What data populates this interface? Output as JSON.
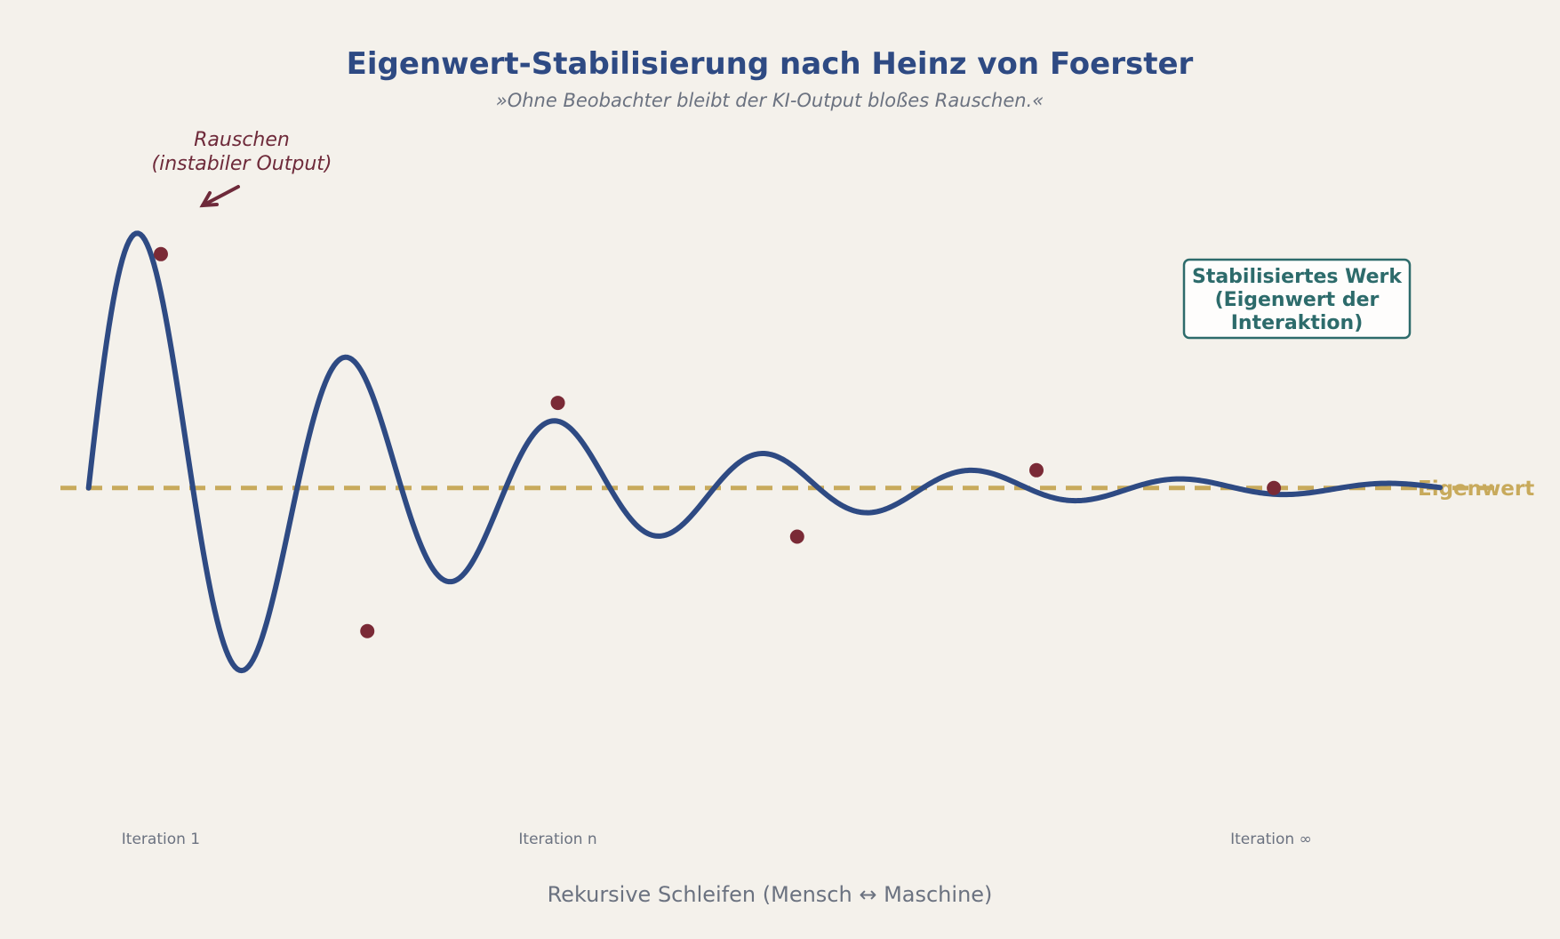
{
  "colors": {
    "background": "#f4f1eb",
    "curve": "#2e4a83",
    "points": "#7a2a36",
    "eigenwert_line": "#c8aa5c",
    "annotation": "#6e2a3a",
    "box_border": "#2d6b6b",
    "muted_text": "#6b7280"
  },
  "chart_data": {
    "type": "line",
    "title": "Eigenwert-Stabilisierung nach Heinz von Foerster",
    "subtitle": "»Ohne Beobachter bleibt der KI-Output bloßes Rauschen.«",
    "xlabel": "Rekursive Schleifen (Mensch ↔ Maschine)",
    "ylabel": "",
    "xlim": [
      -0.3,
      15.3
    ],
    "ylim": [
      -3.5,
      4.0
    ],
    "grid": false,
    "x_tick_labels": [
      {
        "x": 0.77,
        "label": "Iteration 1"
      },
      {
        "x": 5.0,
        "label": "Iteration n"
      },
      {
        "x": 12.6,
        "label": "Iteration ∞"
      }
    ],
    "reference_line": {
      "y": 0,
      "label": "Eigenwert",
      "style": "dashed"
    },
    "series": [
      {
        "curve": {
          "amplitude": 3.2,
          "decay": 0.3,
          "frequency": 0.45,
          "x_range": [
            0,
            14.4
          ]
        },
        "points": [
          {
            "x": 0.77,
            "y": 2.5
          },
          {
            "x": 2.97,
            "y": -1.53
          },
          {
            "x": 5.0,
            "y": 0.91
          },
          {
            "x": 7.55,
            "y": -0.52
          },
          {
            "x": 10.1,
            "y": 0.19
          },
          {
            "x": 12.63,
            "y": 0.0
          }
        ]
      }
    ],
    "annotations": [
      {
        "lines": [
          "Rauschen",
          "(instabiler Output)"
        ],
        "style": "arrow",
        "target": {
          "x": 0.77,
          "y": 2.5
        }
      },
      {
        "lines": [
          "Stabilisiertes Werk",
          "(Eigenwert der",
          "Interaktion)"
        ],
        "style": "box",
        "position": "upper-right"
      }
    ]
  }
}
